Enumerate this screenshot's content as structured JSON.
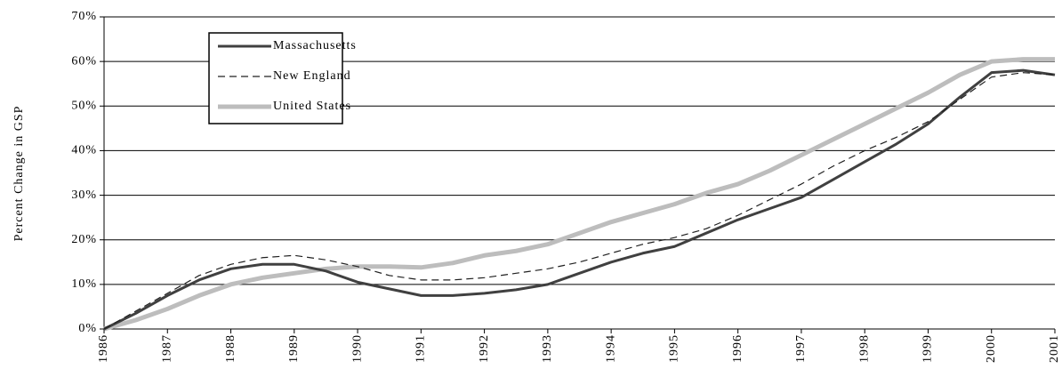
{
  "chart_data": {
    "type": "line",
    "y_label": "Percent Change in GSP",
    "x": [
      1986,
      1986.5,
      1987,
      1987.5,
      1988,
      1988.5,
      1989,
      1989.5,
      1990,
      1990.5,
      1991,
      1991.5,
      1992,
      1992.5,
      1993,
      1993.5,
      1994,
      1994.5,
      1995,
      1995.5,
      1996,
      1996.5,
      1997,
      1997.5,
      1998,
      1998.5,
      1999,
      1999.5,
      2000,
      2000.5,
      2001
    ],
    "series": [
      {
        "name": "Massachusetts",
        "color": "#404040",
        "dash": "solid",
        "values": [
          0,
          3.5,
          7.5,
          11,
          13.5,
          14.5,
          14.5,
          13,
          10.5,
          9,
          7.5,
          7.5,
          8,
          8.8,
          10,
          12.5,
          15,
          17,
          18.5,
          21.5,
          24.5,
          27,
          29.5,
          33.5,
          37.5,
          41.5,
          46,
          52,
          57.5,
          58,
          57
        ]
      },
      {
        "name": "New England",
        "color": "#202020",
        "dash": "dashed",
        "values": [
          0,
          4,
          8,
          12,
          14.5,
          16,
          16.5,
          15.5,
          14,
          12,
          11,
          11,
          11.5,
          12.5,
          13.5,
          15,
          17,
          19,
          20.5,
          22.5,
          25.5,
          29,
          32.5,
          36.5,
          40,
          43,
          46.5,
          51.5,
          56.5,
          57.5,
          57
        ]
      },
      {
        "name": "United States",
        "color": "#bdbdbd",
        "dash": "solid",
        "values": [
          0,
          2,
          4.5,
          7.5,
          10,
          11.5,
          12.5,
          13.5,
          14,
          14,
          13.8,
          14.8,
          16.5,
          17.5,
          19,
          21.5,
          24,
          26,
          28,
          30.5,
          32.5,
          35.5,
          39,
          42.5,
          46,
          49.5,
          53,
          57,
          60,
          60.5,
          60.5
        ]
      }
    ],
    "xlim": [
      1986,
      2001
    ],
    "xticks": [
      1986,
      1987,
      1988,
      1989,
      1990,
      1991,
      1992,
      1993,
      1994,
      1995,
      1996,
      1997,
      1998,
      1999,
      2000,
      2001
    ],
    "ylim": [
      0,
      70
    ],
    "yticks": [
      {
        "value": 0,
        "label": "0%"
      },
      {
        "value": 10,
        "label": "10%"
      },
      {
        "value": 20,
        "label": "20%"
      },
      {
        "value": 30,
        "label": "30%"
      },
      {
        "value": 40,
        "label": "40%"
      },
      {
        "value": 50,
        "label": "50%"
      },
      {
        "value": 60,
        "label": "60%"
      },
      {
        "value": 70,
        "label": "70%"
      }
    ],
    "grid": true,
    "legend": "top-left"
  }
}
